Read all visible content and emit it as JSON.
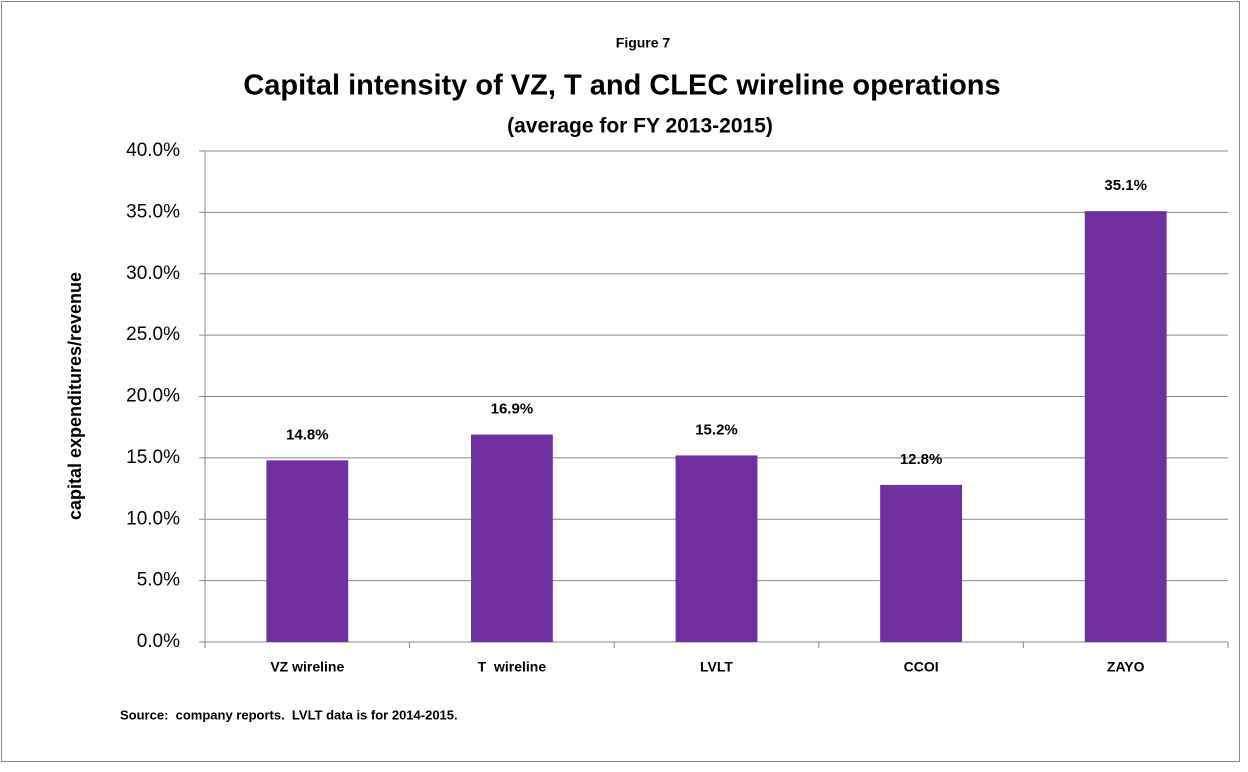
{
  "chart_data": {
    "type": "bar",
    "figure_label": "Figure 7",
    "title": "Capital intensity of VZ, T and CLEC wireline operations",
    "subtitle": "(average for FY 2013-2015)",
    "y_label": "capital expenditures/revenue",
    "source": "Source:  company reports.  LVLT data is for 2014-2015.",
    "categories": [
      "VZ wireline",
      "T  wireline",
      "LVLT",
      "CCOI",
      "ZAYO"
    ],
    "values": [
      14.8,
      16.9,
      15.2,
      12.8,
      35.1
    ],
    "value_labels": [
      "14.8%",
      "16.9%",
      "15.2%",
      "12.8%",
      "35.1%"
    ],
    "color": "#7030a0",
    "ylim": [
      0,
      40
    ],
    "yticks": [
      {
        "value": 0,
        "label": "0.0%"
      },
      {
        "value": 5,
        "label": "5.0%"
      },
      {
        "value": 10,
        "label": "10.0%"
      },
      {
        "value": 15,
        "label": "15.0%"
      },
      {
        "value": 20,
        "label": "20.0%"
      },
      {
        "value": 25,
        "label": "25.0%"
      },
      {
        "value": 30,
        "label": "30.0%"
      },
      {
        "value": 35,
        "label": "35.0%"
      },
      {
        "value": 40,
        "label": "40.0%"
      }
    ],
    "grid": true
  }
}
